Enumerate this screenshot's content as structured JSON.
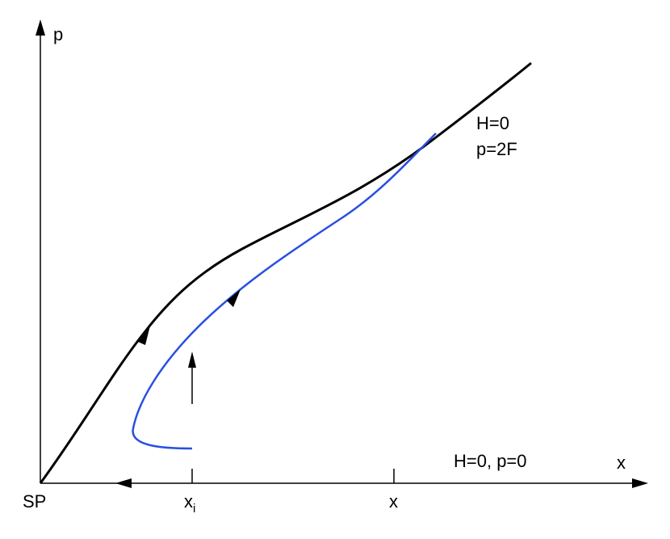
{
  "axes": {
    "y_label": "p",
    "x_label": "x",
    "origin_label": "SP"
  },
  "ticks": [
    {
      "base": "x",
      "sub": "i"
    },
    {
      "base": "x"
    }
  ],
  "annotations": {
    "upper_line1": "H=0",
    "upper_line2": "p=2F",
    "lower": "H=0, p=0"
  }
}
